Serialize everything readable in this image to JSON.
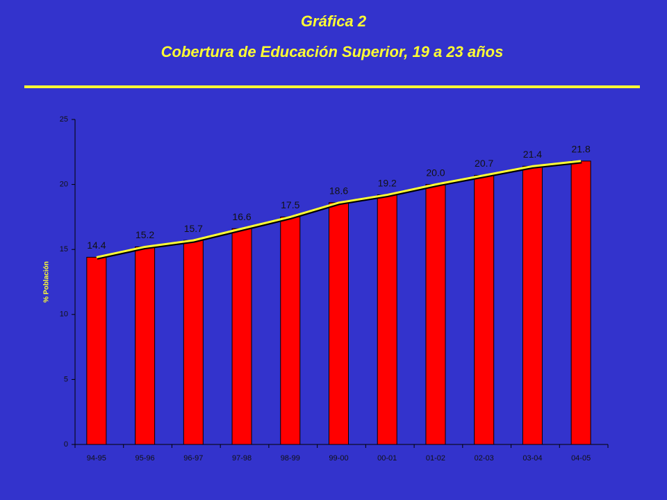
{
  "chart_data": {
    "type": "bar",
    "title": "Gráfica 2",
    "subtitle": "Cobertura de Educación Superior, 19 a 23 años",
    "y_label": "% Población",
    "categories": [
      "94-95",
      "95-96",
      "96-97",
      "97-98",
      "98-99",
      "99-00",
      "00-01",
      "01-02",
      "02-03",
      "03-04",
      "04-05"
    ],
    "values": [
      14.4,
      15.2,
      15.7,
      16.6,
      17.5,
      18.6,
      19.2,
      20.0,
      20.7,
      21.4,
      21.8
    ],
    "value_labels": [
      "14.4",
      "15.2",
      "15.7",
      "16.6",
      "17.5",
      "18.6",
      "19.2",
      "20.0",
      "20.7",
      "21.4",
      "21.8"
    ],
    "color": "#ff0000",
    "line_color": "#ffff33",
    "ylim": [
      0,
      25
    ],
    "yticks": [
      0,
      5,
      10,
      15,
      20,
      25
    ]
  }
}
